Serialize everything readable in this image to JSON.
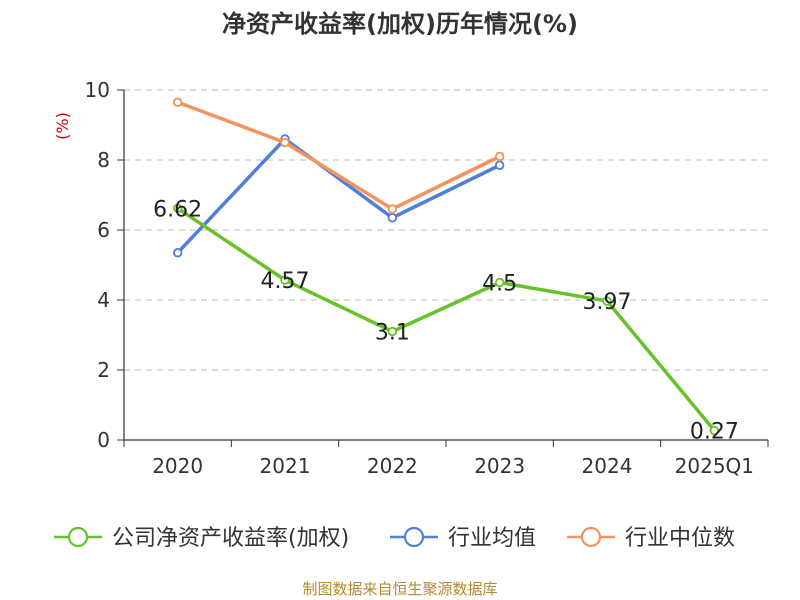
{
  "title": "净资产收益率(加权)历年情况(%)",
  "source": "制图数据来自恒生聚源数据库",
  "chart_data": {
    "type": "line",
    "title": "净资产收益率(加权)历年情况(%)",
    "ylabel": "(%)",
    "xlabel": "",
    "categories": [
      "2020",
      "2021",
      "2022",
      "2023",
      "2024",
      "2025Q1"
    ],
    "ylim": [
      0,
      10
    ],
    "yticks": [
      0,
      2,
      4,
      6,
      8,
      10
    ],
    "grid": true,
    "legend_position": "bottom",
    "series": [
      {
        "name": "公司净资产收益率(加权)",
        "color": "#66c22a",
        "values": [
          6.62,
          4.57,
          3.1,
          4.5,
          3.97,
          0.27
        ],
        "labels": [
          "6.62",
          "4.57",
          "3.1",
          "4.5",
          "3.97",
          "0.27"
        ]
      },
      {
        "name": "行业均值",
        "color": "#4f7fd9",
        "values": [
          5.35,
          8.6,
          6.35,
          7.85,
          null,
          null
        ]
      },
      {
        "name": "行业中位数",
        "color": "#f5935c",
        "values": [
          9.65,
          8.5,
          6.6,
          8.1,
          null,
          null
        ]
      }
    ]
  }
}
